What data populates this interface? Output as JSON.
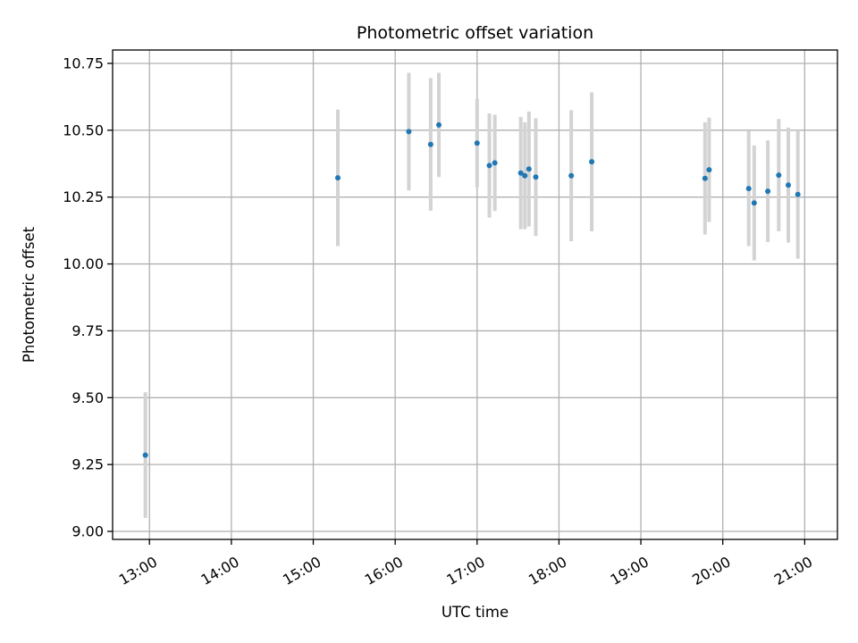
{
  "chart_data": {
    "type": "scatter",
    "title": "Photometric offset variation",
    "xlabel": "UTC time",
    "ylabel": "Photometric offset",
    "xlim": [
      "12:33",
      "21:24"
    ],
    "ylim": [
      8.97,
      10.8
    ],
    "x_ticks": [
      "13:00",
      "14:00",
      "15:00",
      "16:00",
      "17:00",
      "18:00",
      "19:00",
      "20:00",
      "21:00"
    ],
    "y_ticks": [
      "9.00",
      "9.25",
      "9.50",
      "9.75",
      "10.00",
      "10.25",
      "10.50",
      "10.75"
    ],
    "grid": true,
    "colors": {
      "point": "#1f77b4",
      "errorbar": "#d3d3d3",
      "grid": "#b0b0b0"
    },
    "points": [
      {
        "x": "12:57",
        "y": 9.285,
        "err": 0.235
      },
      {
        "x": "15:18",
        "y": 10.322,
        "err": 0.255
      },
      {
        "x": "16:10",
        "y": 10.495,
        "err": 0.22
      },
      {
        "x": "16:26",
        "y": 10.447,
        "err": 0.248
      },
      {
        "x": "16:32",
        "y": 10.52,
        "err": 0.195
      },
      {
        "x": "17:00",
        "y": 10.452,
        "err": 0.165
      },
      {
        "x": "17:09",
        "y": 10.368,
        "err": 0.195
      },
      {
        "x": "17:13",
        "y": 10.378,
        "err": 0.18
      },
      {
        "x": "17:32",
        "y": 10.34,
        "err": 0.21
      },
      {
        "x": "17:35",
        "y": 10.33,
        "err": 0.2
      },
      {
        "x": "17:38",
        "y": 10.355,
        "err": 0.215
      },
      {
        "x": "17:43",
        "y": 10.325,
        "err": 0.22
      },
      {
        "x": "18:09",
        "y": 10.33,
        "err": 0.245
      },
      {
        "x": "18:24",
        "y": 10.382,
        "err": 0.26
      },
      {
        "x": "19:47",
        "y": 10.32,
        "err": 0.21
      },
      {
        "x": "19:50",
        "y": 10.352,
        "err": 0.195
      },
      {
        "x": "20:19",
        "y": 10.282,
        "err": 0.215
      },
      {
        "x": "20:23",
        "y": 10.228,
        "err": 0.215
      },
      {
        "x": "20:33",
        "y": 10.272,
        "err": 0.19
      },
      {
        "x": "20:41",
        "y": 10.332,
        "err": 0.21
      },
      {
        "x": "20:48",
        "y": 10.295,
        "err": 0.215
      },
      {
        "x": "20:55",
        "y": 10.26,
        "err": 0.24
      }
    ]
  }
}
